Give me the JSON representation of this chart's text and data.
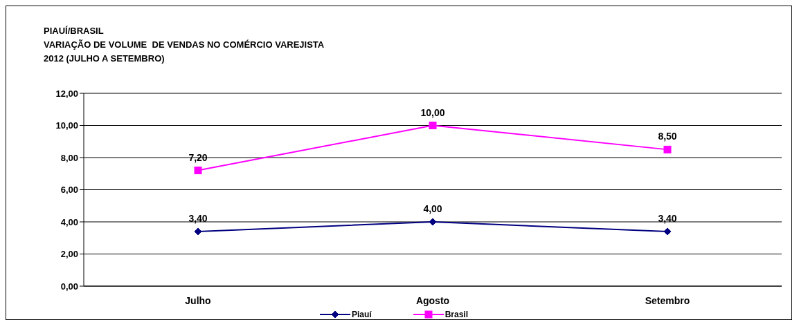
{
  "chart_data": {
    "type": "line",
    "title": "PIAUÍ/BRASIL",
    "subtitle": "VARIAÇÃO DE VOLUME  DE VENDAS NO COMÉRCIO VAREJISTA\n2012 (JULHO A SETEMBRO)",
    "categories": [
      "Julho",
      "Agosto",
      "Setembro"
    ],
    "series": [
      {
        "name": "Piauí",
        "color": "#000080",
        "marker": "diamond",
        "values": [
          3.4,
          4.0,
          3.4
        ],
        "value_labels": [
          "3,40",
          "4,00",
          "3,40"
        ]
      },
      {
        "name": "Brasil",
        "color": "#ff00ff",
        "marker": "square",
        "values": [
          7.2,
          10.0,
          8.5
        ],
        "value_labels": [
          "7,20",
          "10,00",
          "8,50"
        ]
      }
    ],
    "ylim": [
      0,
      12
    ],
    "yticks": [
      {
        "value": 0,
        "label": "0,00"
      },
      {
        "value": 2,
        "label": "2,00"
      },
      {
        "value": 4,
        "label": "4,00"
      },
      {
        "value": 6,
        "label": "6,00"
      },
      {
        "value": 8,
        "label": "8,00"
      },
      {
        "value": 10,
        "label": "10,00"
      },
      {
        "value": 12,
        "label": "12,00"
      }
    ],
    "grid": "y",
    "legend": "bottom",
    "line_style": "solid"
  }
}
